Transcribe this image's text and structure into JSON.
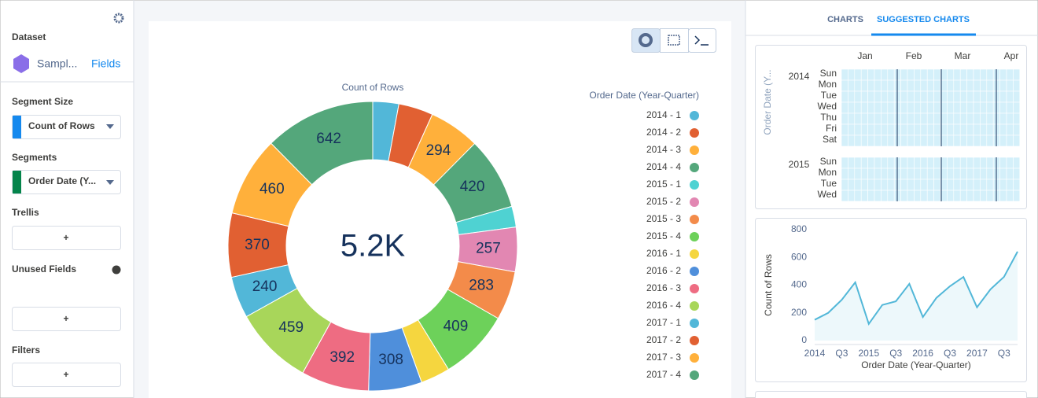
{
  "sidebar": {
    "dataset_label": "Dataset",
    "dataset_name": "Sampl...",
    "fields_link": "Fields",
    "segment_size_label": "Segment Size",
    "segment_size_field": "Count of Rows",
    "segments_label": "Segments",
    "segments_field": "Order Date (Y...",
    "trellis_label": "Trellis",
    "unused_fields_label": "Unused Fields",
    "filters_label": "Filters",
    "add_button": "+"
  },
  "tabs": [
    "CHARTS",
    "SUGGESTED CHARTS"
  ],
  "chart_data": [
    {
      "type": "donut",
      "title": "Count of Rows",
      "center_label": "5.2K",
      "legend_title": "Order Date (Year-Quarter)",
      "legend_position": "right",
      "categories": [
        "2014 - 1",
        "2014 - 2",
        "2014 - 3",
        "2014 - 4",
        "2015 - 1",
        "2015 - 2",
        "2015 - 3",
        "2015 - 4",
        "2016 - 1",
        "2016 - 2",
        "2016 - 3",
        "2016 - 4",
        "2017 - 1",
        "2017 - 2",
        "2017 - 3",
        "2017 - 4"
      ],
      "values": [
        150,
        200,
        294,
        420,
        120,
        257,
        283,
        409,
        170,
        308,
        392,
        459,
        240,
        370,
        460,
        642
      ],
      "colors": [
        "#52b7d8",
        "#e16032",
        "#ffb03b",
        "#54a77b",
        "#4fd2d2",
        "#e287b2",
        "#f38b4a",
        "#6dd15a",
        "#f5d63f",
        "#4f8fdb",
        "#ee6c82",
        "#a8d65a",
        "#52b7d8",
        "#e16032",
        "#ffb03b",
        "#54a77b"
      ]
    },
    {
      "type": "calendar",
      "y_label": "Order Date (Y...",
      "months": [
        "Jan",
        "Feb",
        "Mar",
        "Apr"
      ],
      "years": [
        "2014",
        "2015"
      ],
      "weekdays": [
        "Sun",
        "Mon",
        "Tue",
        "Wed",
        "Thu",
        "Fri",
        "Sat"
      ],
      "color": "#d4f0fa"
    },
    {
      "type": "line",
      "y_label": "Count of Rows",
      "x_label": "Order Date (Year-Quarter)",
      "color": "#52b7d8",
      "categories": [
        "2014",
        null,
        "Q3",
        null,
        "2015",
        null,
        "Q3",
        null,
        "2016",
        null,
        "Q3",
        null,
        "2017",
        null,
        "Q3",
        null
      ],
      "values": [
        150,
        200,
        294,
        420,
        120,
        257,
        283,
        409,
        170,
        308,
        392,
        459,
        240,
        370,
        460,
        642
      ],
      "ylim": [
        0,
        800
      ],
      "yticks": [
        0,
        200,
        400,
        600,
        800
      ],
      "grid": false
    }
  ]
}
